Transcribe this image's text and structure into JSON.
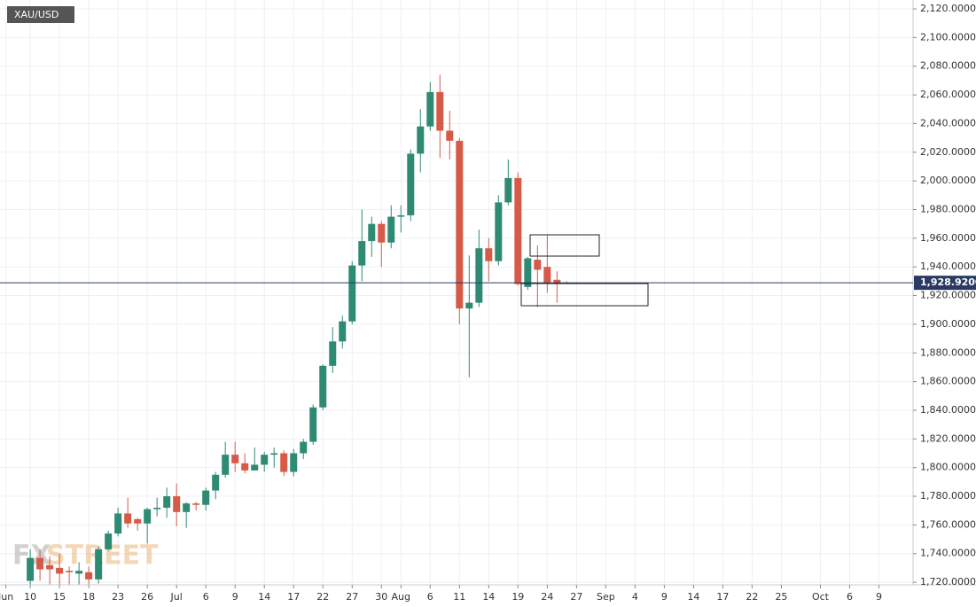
{
  "chart_data": {
    "type": "candlestick",
    "title": "XAU/USD",
    "watermark": [
      "FX",
      "STREET"
    ],
    "up_color": "#2f8a74",
    "down_color": "#d65a48",
    "grid": true,
    "x": [
      0,
      1,
      2,
      3,
      4,
      5,
      6,
      7,
      8,
      9,
      10,
      11,
      12,
      13,
      14,
      15,
      16,
      17,
      18,
      19,
      20,
      21,
      22,
      23,
      24,
      25,
      26,
      27,
      28,
      29,
      30,
      31,
      32,
      33,
      34,
      35,
      36,
      37,
      38,
      39,
      40,
      41,
      42,
      43,
      44,
      45,
      46,
      47,
      48,
      49,
      50,
      51,
      52,
      53,
      54,
      55
    ],
    "open": [
      1721,
      1737,
      1732,
      1730,
      1728,
      1726,
      1727,
      1722,
      1743,
      1754,
      1768,
      1764,
      1761,
      1771,
      1772,
      1780,
      1769,
      1775,
      1774,
      1784,
      1795,
      1809,
      1803,
      1798,
      1802,
      1809,
      1810,
      1797,
      1810,
      1818,
      1842,
      1871,
      1888,
      1902,
      1941,
      1958,
      1970,
      1957,
      1975,
      1976,
      2019,
      2038,
      2062,
      2035,
      2028,
      1911,
      1915,
      1953,
      1944,
      1985,
      2002,
      1926,
      1945,
      1940,
      1931,
      1929
    ],
    "high": [
      1743,
      1743,
      1738,
      1740,
      1731,
      1734,
      1731,
      1745,
      1756,
      1772,
      1779,
      1765,
      1772,
      1779,
      1786,
      1789,
      1776,
      1776,
      1786,
      1797,
      1818,
      1818,
      1810,
      1814,
      1811,
      1814,
      1812,
      1813,
      1820,
      1844,
      1872,
      1898,
      1906,
      1944,
      1980,
      1975,
      1972,
      1983,
      1983,
      2022,
      2050,
      2069,
      2074,
      2049,
      2030,
      1948,
      1966,
      1960,
      1990,
      2015,
      2006,
      1947,
      1955,
      1962,
      1937,
      1930
    ],
    "low": [
      1718,
      1721,
      1718,
      1718,
      1718,
      1718,
      1718,
      1719,
      1742,
      1752,
      1758,
      1756,
      1747,
      1766,
      1765,
      1759,
      1758,
      1770,
      1770,
      1778,
      1793,
      1797,
      1796,
      1798,
      1797,
      1800,
      1794,
      1794,
      1806,
      1816,
      1840,
      1866,
      1883,
      1900,
      1930,
      1947,
      1940,
      1953,
      1964,
      1972,
      2006,
      2035,
      2016,
      2015,
      1900,
      1863,
      1912,
      1930,
      1941,
      1983,
      1927,
      1924,
      1912,
      1922,
      1915,
      1928
    ],
    "close": [
      1737,
      1729,
      1729,
      1726,
      1727,
      1728,
      1722,
      1743,
      1754,
      1768,
      1761,
      1761,
      1771,
      1772,
      1780,
      1769,
      1775,
      1774,
      1784,
      1795,
      1809,
      1803,
      1798,
      1802,
      1809,
      1810,
      1797,
      1810,
      1818,
      1842,
      1871,
      1888,
      1902,
      1941,
      1958,
      1970,
      1957,
      1975,
      1976,
      2019,
      2038,
      2062,
      2035,
      2028,
      1911,
      1915,
      1953,
      1944,
      1985,
      2002,
      1928,
      1946,
      1938,
      1929,
      1928,
      1928.92
    ],
    "last_price": {
      "value": 1928.92,
      "label": "1,928.9200"
    },
    "last_price_color": "#2b3a63",
    "xlim": [
      -3.1,
      90.5
    ],
    "xticks": [
      {
        "value": -2.5,
        "label": "Jun"
      },
      {
        "value": 0,
        "label": "10"
      },
      {
        "value": 3,
        "label": "15"
      },
      {
        "value": 6,
        "label": "18"
      },
      {
        "value": 9,
        "label": "23"
      },
      {
        "value": 12,
        "label": "26"
      },
      {
        "value": 15,
        "label": "Jul"
      },
      {
        "value": 18,
        "label": "6"
      },
      {
        "value": 21,
        "label": "9"
      },
      {
        "value": 24,
        "label": "14"
      },
      {
        "value": 27,
        "label": "17"
      },
      {
        "value": 30,
        "label": "22"
      },
      {
        "value": 33,
        "label": "27"
      },
      {
        "value": 36,
        "label": "30"
      },
      {
        "value": 38,
        "label": "Aug"
      },
      {
        "value": 41,
        "label": "6"
      },
      {
        "value": 44,
        "label": "11"
      },
      {
        "value": 47,
        "label": "14"
      },
      {
        "value": 50,
        "label": "19"
      },
      {
        "value": 53,
        "label": "24"
      },
      {
        "value": 56,
        "label": "27"
      },
      {
        "value": 59,
        "label": "Sep"
      },
      {
        "value": 62,
        "label": "4"
      },
      {
        "value": 65,
        "label": "9"
      },
      {
        "value": 68,
        "label": "14"
      },
      {
        "value": 71,
        "label": "17"
      },
      {
        "value": 74,
        "label": "22"
      },
      {
        "value": 77,
        "label": "25"
      },
      {
        "value": 81,
        "label": "Oct"
      },
      {
        "value": 84,
        "label": "6"
      },
      {
        "value": 87,
        "label": "9"
      }
    ],
    "ylim": [
      1718.2,
      2126.2
    ],
    "yticks": [
      {
        "value": 1720,
        "label": "1,720.0000"
      },
      {
        "value": 1740,
        "label": "1,740.0000"
      },
      {
        "value": 1760,
        "label": "1,760.0000"
      },
      {
        "value": 1780,
        "label": "1,780.0000"
      },
      {
        "value": 1800,
        "label": "1,800.0000"
      },
      {
        "value": 1820,
        "label": "1,820.0000"
      },
      {
        "value": 1840,
        "label": "1,840.0000"
      },
      {
        "value": 1860,
        "label": "1,860.0000"
      },
      {
        "value": 1880,
        "label": "1,880.0000"
      },
      {
        "value": 1900,
        "label": "1,900.0000"
      },
      {
        "value": 1920,
        "label": "1,920.0000"
      },
      {
        "value": 1940,
        "label": "1,940.0000"
      },
      {
        "value": 1960,
        "label": "1,960.0000"
      },
      {
        "value": 1980,
        "label": "1,980.0000"
      },
      {
        "value": 2000,
        "label": "2,000.0000"
      },
      {
        "value": 2020,
        "label": "2,020.0000"
      },
      {
        "value": 2040,
        "label": "2,040.0000"
      },
      {
        "value": 2060,
        "label": "2,060.0000"
      },
      {
        "value": 2080,
        "label": "2,080.0000"
      },
      {
        "value": 2100,
        "label": "2,100.0000"
      },
      {
        "value": 2120,
        "label": "2,120.0000"
      }
    ]
  }
}
